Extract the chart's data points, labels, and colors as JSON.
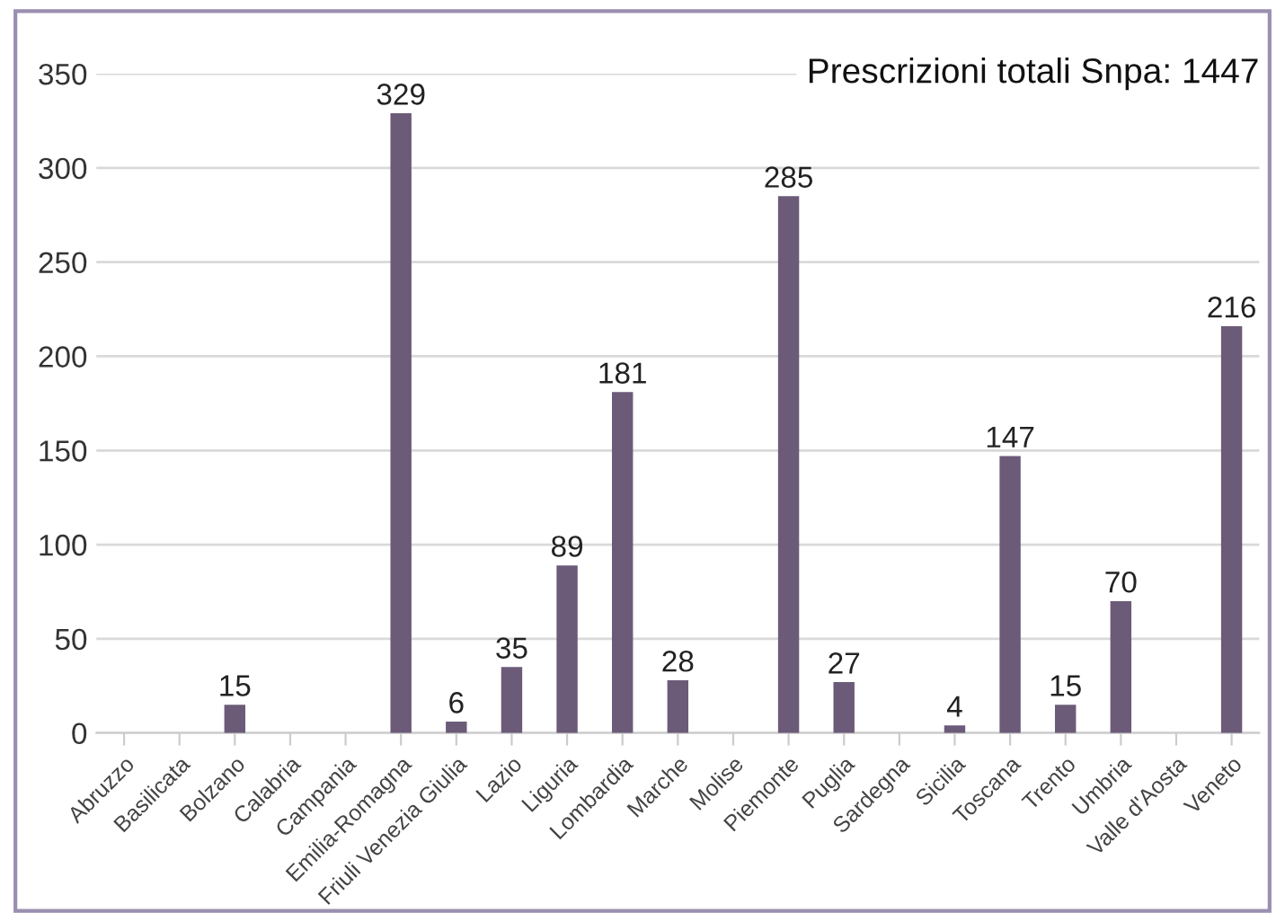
{
  "chart_data": {
    "type": "bar",
    "categories": [
      "Abruzzo",
      "Basilicata",
      "Bolzano",
      "Calabria",
      "Campania",
      "Emilia-Romagna",
      "Friuli Venezia Giulia",
      "Lazio",
      "Liguria",
      "Lombardia",
      "Marche",
      "Molise",
      "Piemonte",
      "Puglia",
      "Sardegna",
      "Sicilia",
      "Toscana",
      "Trento",
      "Umbria",
      "Valle d'Aosta",
      "Veneto"
    ],
    "values": [
      0,
      0,
      15,
      0,
      0,
      329,
      6,
      35,
      89,
      181,
      28,
      0,
      285,
      27,
      0,
      4,
      147,
      15,
      70,
      0,
      216
    ],
    "value_labels": [
      null,
      null,
      "15",
      null,
      null,
      "329",
      "6",
      "35",
      "89",
      "181",
      "28",
      null,
      "285",
      "27",
      null,
      "4",
      "147",
      "15",
      "70",
      null,
      "216"
    ],
    "color": "#6b5b78",
    "ylim": [
      0,
      350
    ],
    "yticks": [
      0,
      50,
      100,
      150,
      200,
      250,
      300,
      350
    ],
    "grid": "y",
    "legend": false,
    "annotations": [
      "Prescrizioni totali Snpa: 1447"
    ]
  }
}
